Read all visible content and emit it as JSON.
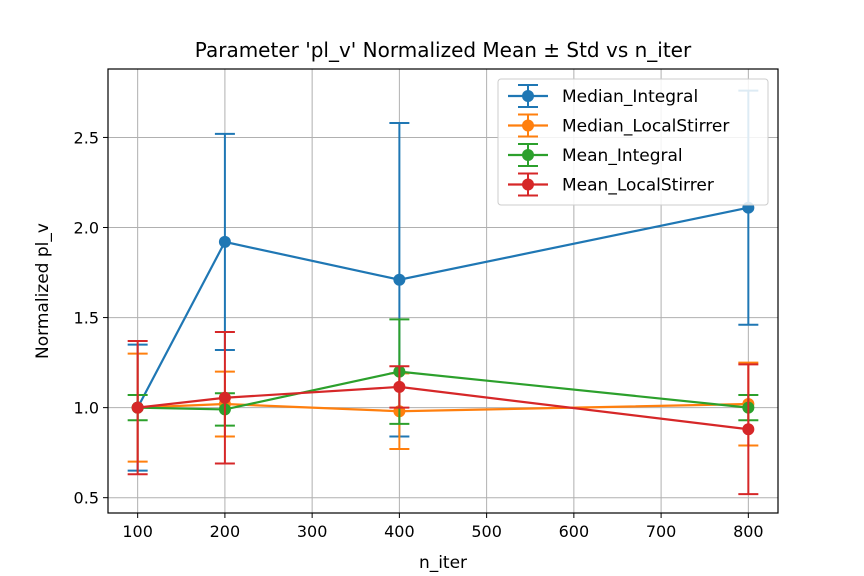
{
  "chart_data": {
    "type": "line",
    "title": "Parameter 'pl_v' Normalized Mean ± Std vs n_iter",
    "xlabel": "n_iter",
    "ylabel": "Normalized pl_v",
    "xlim": [
      66,
      834
    ],
    "ylim": [
      0.415,
      2.88
    ],
    "xticks": [
      100,
      200,
      300,
      400,
      500,
      600,
      700,
      800
    ],
    "yticks": [
      0.5,
      1.0,
      1.5,
      2.0,
      2.5
    ],
    "ytick_labels": [
      "0.5",
      "1.0",
      "1.5",
      "2.0",
      "2.5"
    ],
    "grid": true,
    "legend_position": "top-right",
    "x": [
      100,
      200,
      400,
      800
    ],
    "series": [
      {
        "name": "Median_Integral",
        "color": "#1f77b4",
        "values": [
          1.0,
          1.92,
          1.71,
          2.11
        ],
        "std": [
          0.35,
          0.6,
          0.87,
          0.65
        ]
      },
      {
        "name": "Median_LocalStirrer",
        "color": "#ff7f0e",
        "values": [
          1.0,
          1.02,
          0.98,
          1.02
        ],
        "std": [
          0.3,
          0.18,
          0.21,
          0.23
        ]
      },
      {
        "name": "Mean_Integral",
        "color": "#2ca02c",
        "values": [
          1.0,
          0.99,
          1.2,
          1.0
        ],
        "std": [
          0.07,
          0.09,
          0.29,
          0.07
        ]
      },
      {
        "name": "Mean_LocalStirrer",
        "color": "#d62728",
        "values": [
          1.0,
          1.055,
          1.115,
          0.88
        ],
        "std": [
          0.37,
          0.365,
          0.115,
          0.36
        ]
      }
    ]
  }
}
